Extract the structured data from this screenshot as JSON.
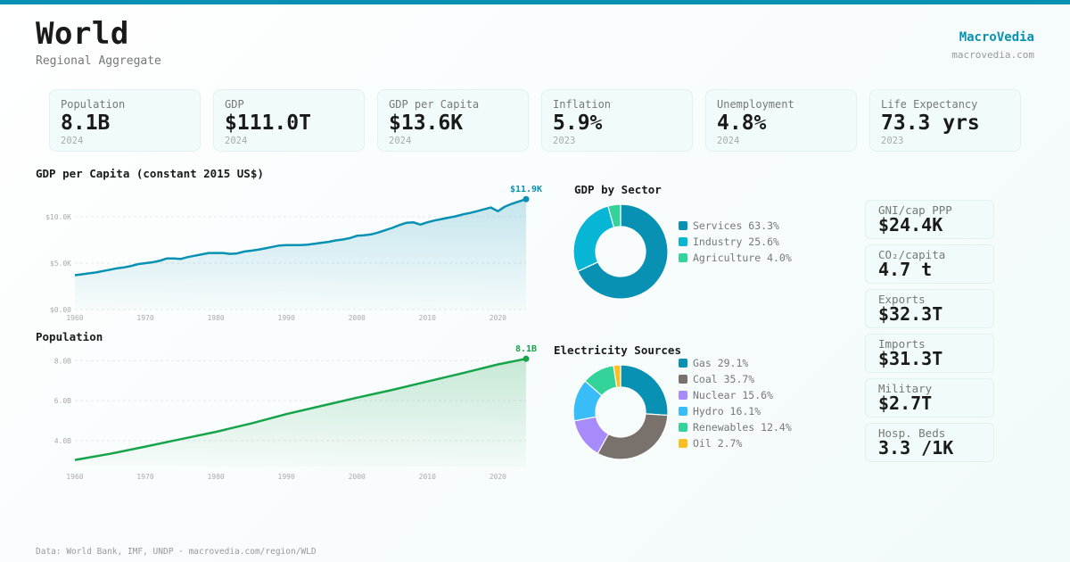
{
  "header": {
    "title": "World",
    "subtitle": "Regional Aggregate",
    "brand": "MacroVedia",
    "brand_url": "macrovedia.com"
  },
  "colors": {
    "accent": "#0891b2",
    "population_line": "#16a34a"
  },
  "kpis": [
    {
      "label": "Population",
      "value": "8.1B",
      "year": "2024"
    },
    {
      "label": "GDP",
      "value": "$111.0T",
      "year": "2024"
    },
    {
      "label": "GDP per Capita",
      "value": "$13.6K",
      "year": "2024"
    },
    {
      "label": "Inflation",
      "value": "5.9%",
      "year": "2023"
    },
    {
      "label": "Unemployment",
      "value": "4.8%",
      "year": "2024"
    },
    {
      "label": "Life Expectancy",
      "value": "73.3 yrs",
      "year": "2023"
    }
  ],
  "side_stats": [
    {
      "label": "GNI/cap PPP",
      "value": "$24.4K"
    },
    {
      "label": "CO₂/capita",
      "value": "4.7 t"
    },
    {
      "label": "Exports",
      "value": "$32.3T"
    },
    {
      "label": "Imports",
      "value": "$31.3T"
    },
    {
      "label": "Military",
      "value": "$2.7T"
    },
    {
      "label": "Hosp. Beds",
      "value": "3.3 /1K"
    }
  ],
  "footer": "Data: World Bank, IMF, UNDP · macrovedia.com/region/WLD",
  "chart_data": [
    {
      "type": "area",
      "title": "GDP per Capita (constant 2015 US$)",
      "xlabel": "",
      "ylabel": "",
      "color": "#0891b2",
      "ylim": [
        0,
        10000
      ],
      "yticks": [
        0,
        5000,
        10000
      ],
      "ytick_labels": [
        "$0.00",
        "$5.0K",
        "$10.0K"
      ],
      "xticks": [
        1960,
        1970,
        1980,
        1990,
        2000,
        2010,
        2020
      ],
      "xlim": [
        1960,
        2024
      ],
      "end_label": "$11.9K",
      "grid": true,
      "x": [
        1960,
        1961,
        1962,
        1963,
        1964,
        1965,
        1966,
        1967,
        1968,
        1969,
        1970,
        1971,
        1972,
        1973,
        1974,
        1975,
        1976,
        1977,
        1978,
        1979,
        1980,
        1981,
        1982,
        1983,
        1984,
        1985,
        1986,
        1987,
        1988,
        1989,
        1990,
        1991,
        1992,
        1993,
        1994,
        1995,
        1996,
        1997,
        1998,
        1999,
        2000,
        2001,
        2002,
        2003,
        2004,
        2005,
        2006,
        2007,
        2008,
        2009,
        2010,
        2011,
        2012,
        2013,
        2014,
        2015,
        2016,
        2017,
        2018,
        2019,
        2020,
        2021,
        2022,
        2023,
        2024
      ],
      "values": [
        3700,
        3800,
        3900,
        4000,
        4150,
        4300,
        4450,
        4550,
        4700,
        4900,
        5000,
        5100,
        5250,
        5500,
        5500,
        5450,
        5650,
        5800,
        5950,
        6100,
        6100,
        6100,
        6000,
        6050,
        6250,
        6350,
        6450,
        6600,
        6750,
        6900,
        6950,
        6950,
        6950,
        7000,
        7100,
        7200,
        7300,
        7450,
        7550,
        7700,
        7950,
        8000,
        8100,
        8300,
        8550,
        8800,
        9100,
        9350,
        9400,
        9150,
        9400,
        9600,
        9750,
        9900,
        10050,
        10250,
        10400,
        10600,
        10800,
        11000,
        10600,
        11100,
        11400,
        11650,
        11900
      ]
    },
    {
      "type": "area",
      "title": "Population",
      "xlabel": "",
      "ylabel": "",
      "color": "#16a34a",
      "ylim": [
        2700000000,
        8600000000
      ],
      "yticks": [
        4000000000,
        6000000000,
        8000000000
      ],
      "ytick_labels": [
        "4.0B",
        "6.0B",
        "8.0B"
      ],
      "xticks": [
        1960,
        1970,
        1980,
        1990,
        2000,
        2010,
        2020
      ],
      "xlim": [
        1960,
        2024
      ],
      "end_label": "8.1B",
      "grid": true,
      "x": [
        1960,
        1965,
        1970,
        1975,
        1980,
        1985,
        1990,
        1995,
        2000,
        2005,
        2010,
        2015,
        2020,
        2024
      ],
      "values": [
        3030000000,
        3340000000,
        3700000000,
        4070000000,
        4440000000,
        4860000000,
        5330000000,
        5740000000,
        6150000000,
        6540000000,
        6960000000,
        7380000000,
        7820000000,
        8100000000
      ]
    },
    {
      "type": "pie",
      "title": "GDP by Sector",
      "donut": true,
      "legend": "right",
      "labels": [
        "Services",
        "Industry",
        "Agriculture"
      ],
      "values": [
        63.3,
        25.6,
        4.0
      ],
      "colors": [
        "#0891b2",
        "#06b6d4",
        "#34d399"
      ]
    },
    {
      "type": "pie",
      "title": "Electricity Sources",
      "donut": true,
      "legend": "right",
      "labels": [
        "Gas",
        "Coal",
        "Nuclear",
        "Hydro",
        "Renewables",
        "Oil"
      ],
      "values": [
        29.1,
        35.7,
        15.6,
        16.1,
        12.4,
        2.7
      ],
      "colors": [
        "#0891b2",
        "#78716c",
        "#a78bfa",
        "#38bdf8",
        "#34d399",
        "#fbbf24"
      ]
    }
  ]
}
